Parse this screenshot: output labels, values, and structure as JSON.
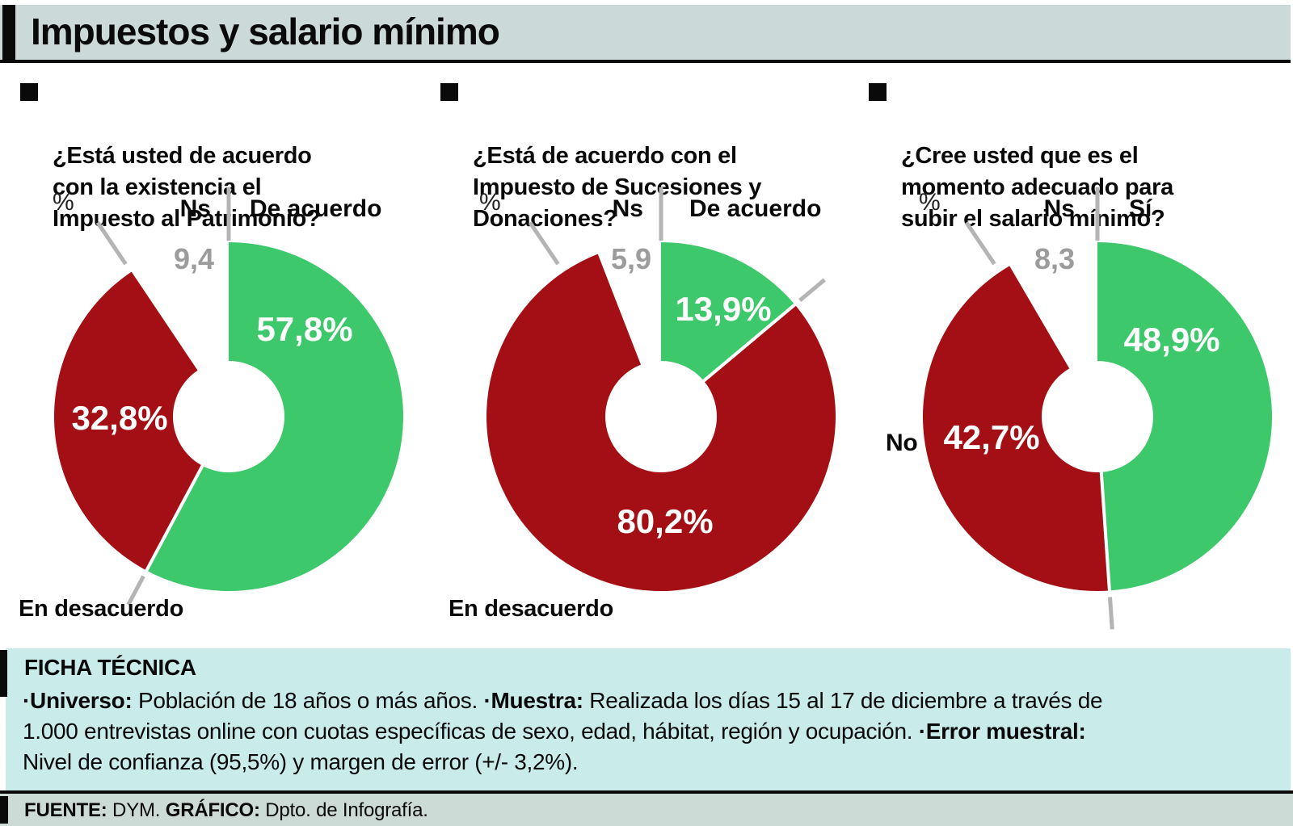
{
  "title": "Impuestos y salario mínimo",
  "palette": {
    "green": "#3ec86c",
    "red": "#a40f15",
    "tick_gray": "#b4b4b4",
    "ns_gray": "#9c9c9c",
    "header_bg": "#cbdad9",
    "ficha_bg": "#c9ecea",
    "footer_bg": "#cddbd6"
  },
  "charts": [
    {
      "question": "¿Está usted de acuerdo\ncon la existencia el\nImpuesto al Patrimonio?",
      "unit": "%",
      "ns_label": "Ns",
      "agree_label": "De acuerdo",
      "disagree_label": "En desacuerdo",
      "ns_value": "9,4",
      "agree_value": "57,8%",
      "disagree_value": "32,8%"
    },
    {
      "question": "¿Está de acuerdo con el\nImpuesto de Sucesiones y\nDonaciones?",
      "unit": "%",
      "ns_label": "Ns",
      "agree_label": "De acuerdo",
      "disagree_label": "En desacuerdo",
      "ns_value": "5,9",
      "agree_value": "13,9%",
      "disagree_value": "80,2%"
    },
    {
      "question": "¿Cree usted que es el\nmomento adecuado para\nsubir el salario mínimo?",
      "unit": "%",
      "ns_label": "Ns",
      "agree_label": "Sí",
      "disagree_label": "No",
      "ns_value": "8,3",
      "agree_value": "48,9%",
      "disagree_value": "42,7%"
    }
  ],
  "chart_data": [
    {
      "type": "pie",
      "subtype": "donut",
      "title": "¿Está usted de acuerdo con la existencia el Impuesto al Patrimonio?",
      "labels": [
        "De acuerdo",
        "En desacuerdo",
        "Ns"
      ],
      "values": [
        57.8,
        32.8,
        9.4
      ],
      "unit": "%",
      "colors": [
        "#3ec86c",
        "#a40f15",
        "#ffffff"
      ],
      "start_angle_deg": 0,
      "direction": "clockwise",
      "legend_position": "around"
    },
    {
      "type": "pie",
      "subtype": "donut",
      "title": "¿Está de acuerdo con el Impuesto de Sucesiones y Donaciones?",
      "labels": [
        "De acuerdo",
        "En desacuerdo",
        "Ns"
      ],
      "values": [
        13.9,
        80.2,
        5.9
      ],
      "unit": "%",
      "colors": [
        "#3ec86c",
        "#a40f15",
        "#ffffff"
      ],
      "start_angle_deg": 0,
      "direction": "clockwise",
      "legend_position": "around"
    },
    {
      "type": "pie",
      "subtype": "donut",
      "title": "¿Cree usted que es el momento adecuado para subir el salario mínimo?",
      "labels": [
        "Sí",
        "No",
        "Ns"
      ],
      "values": [
        48.9,
        42.7,
        8.3
      ],
      "unit": "%",
      "colors": [
        "#3ec86c",
        "#a40f15",
        "#ffffff"
      ],
      "start_angle_deg": 0,
      "direction": "clockwise",
      "legend_position": "around"
    }
  ],
  "ficha": {
    "heading": "FICHA TÉCNICA",
    "body": [
      {
        "text": "·Universo:",
        "bold": true
      },
      {
        "text": " Población de 18 años o más años. ",
        "bold": false
      },
      {
        "text": "·Muestra:",
        "bold": true
      },
      {
        "text": " Realizada los días 15 al 17 de diciembre a través de\n1.000 entrevistas online con cuotas específicas de sexo, edad, hábitat, región y ocupación. ",
        "bold": false
      },
      {
        "text": "·Error muestral:",
        "bold": true
      },
      {
        "text": "\nNivel de confianza (95,5%) y margen de error (+/- 3,2%).",
        "bold": false
      }
    ]
  },
  "footer": {
    "segments": [
      {
        "text": "FUENTE:",
        "bold": true
      },
      {
        "text": " DYM. ",
        "bold": false
      },
      {
        "text": "GRÁFICO:",
        "bold": true
      },
      {
        "text": " Dpto. de Infografía.",
        "bold": false
      }
    ]
  }
}
